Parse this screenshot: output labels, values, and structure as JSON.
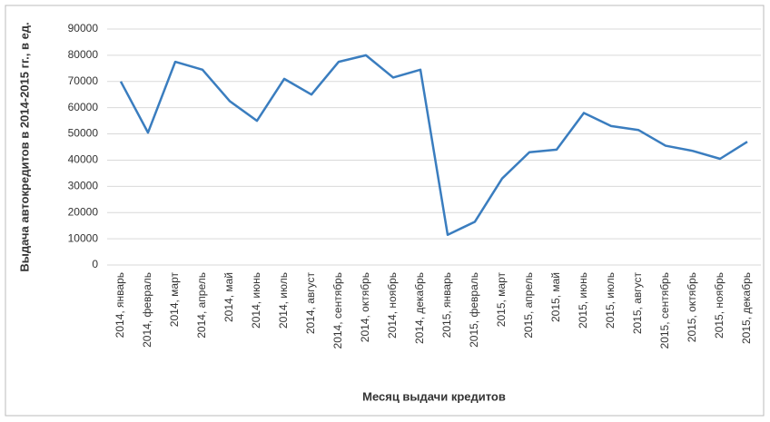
{
  "chart_data": {
    "type": "line",
    "x_label": "Месяц выдачи кредитов",
    "y_label": "Выдача автокредитов в 2014-2015 гг., в ед.",
    "categories": [
      "2014, январь",
      "2014, февраль",
      "2014, март",
      "2014, апрель",
      "2014, май",
      "2014, июнь",
      "2014, июль",
      "2014, август",
      "2014, сентябрь",
      "2014, октябрь",
      "2014, ноябрь",
      "2014, декабрь",
      "2015, январь",
      "2015, февраль",
      "2015, март",
      "2015, апрель",
      "2015, май",
      "2015, июнь",
      "2015, июль",
      "2015, август",
      "2015, сентябрь",
      "2015, октябрь",
      "2015, ноябрь",
      "2015, декабрь"
    ],
    "values": [
      70000,
      50500,
      77500,
      74500,
      62500,
      55000,
      71000,
      65000,
      77500,
      80000,
      71500,
      74500,
      11500,
      16500,
      33000,
      43000,
      44000,
      58000,
      53000,
      51500,
      45500,
      43500,
      40500,
      47000
    ],
    "color": "#3a7dbf",
    "ylim": [
      0,
      90000
    ],
    "yticks": [
      0,
      10000,
      20000,
      30000,
      40000,
      50000,
      60000,
      70000,
      80000,
      90000
    ],
    "grid": true
  }
}
